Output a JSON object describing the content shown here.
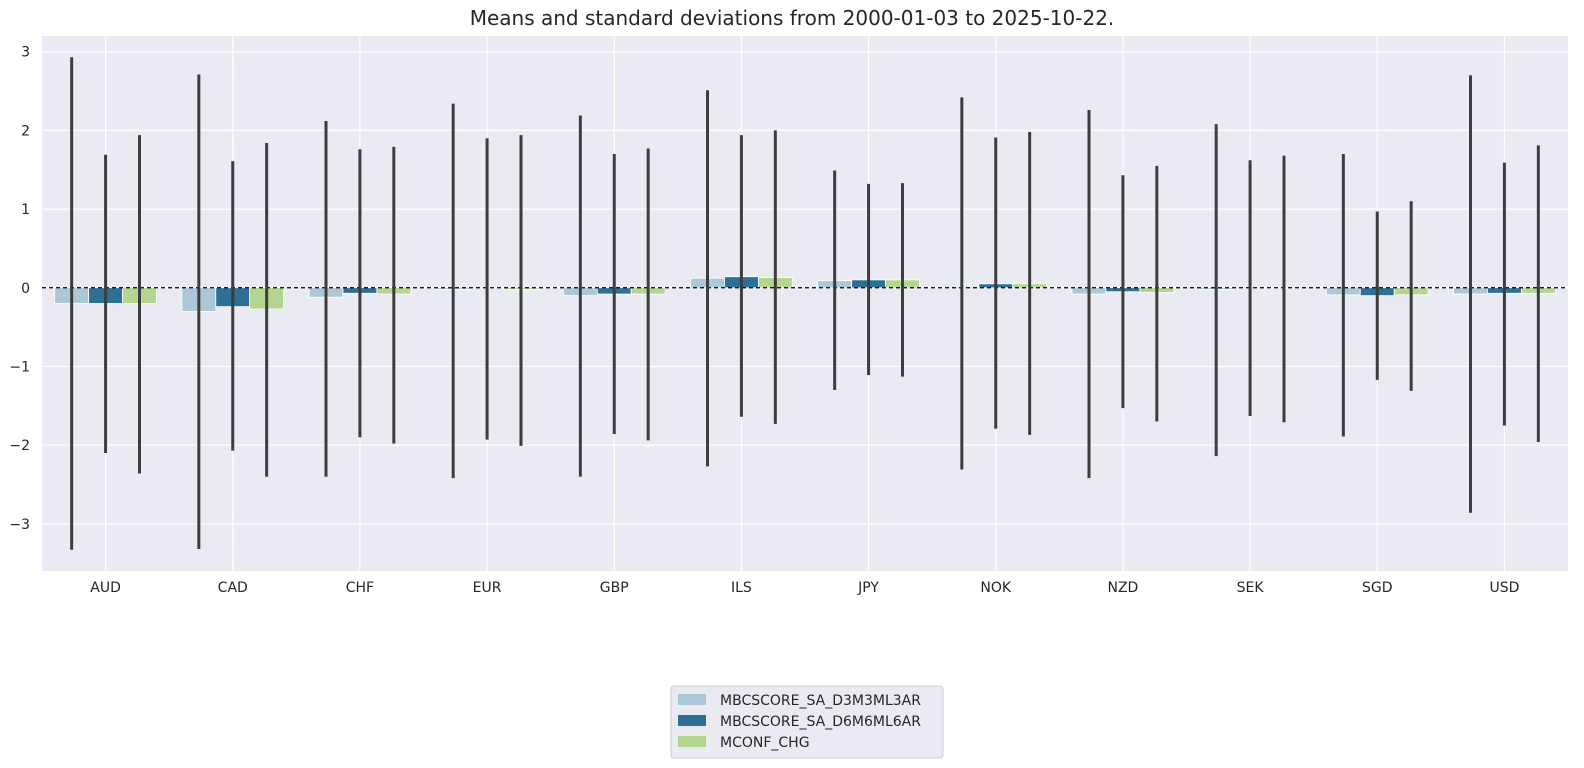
{
  "chart_data": {
    "type": "bar",
    "title": "Means and standard deviations from 2000-01-03 to 2025-10-22.",
    "xlabel": "",
    "ylabel": "",
    "ylim": [
      -3.6,
      3.2
    ],
    "yticks": [
      3,
      2,
      1,
      0,
      -1,
      -2,
      -3
    ],
    "ytick_labels": [
      "3",
      "2",
      "1",
      "0",
      "−1",
      "−2",
      "−3"
    ],
    "grid": true,
    "reference_line": {
      "y": 0,
      "style": "dashed",
      "color": "#000000"
    },
    "legend_position": "bottom-center",
    "categories": [
      "AUD",
      "CAD",
      "CHF",
      "EUR",
      "GBP",
      "ILS",
      "JPY",
      "NOK",
      "NZD",
      "SEK",
      "SGD",
      "USD"
    ],
    "series": [
      {
        "name": "MBCSCORE_SA_D3M3ML3AR",
        "color": "#acc8d8",
        "values": [
          -0.2,
          -0.3,
          -0.12,
          -0.02,
          -0.1,
          0.12,
          0.09,
          0.02,
          -0.08,
          -0.02,
          -0.09,
          -0.08
        ],
        "err_low": [
          -3.33,
          -3.32,
          -2.4,
          -2.42,
          -2.4,
          -2.27,
          -1.3,
          -2.31,
          -2.42,
          -2.14,
          -1.89,
          -2.86
        ],
        "err_high": [
          2.93,
          2.71,
          2.12,
          2.34,
          2.19,
          2.51,
          1.49,
          2.42,
          2.26,
          2.08,
          1.7,
          2.7
        ]
      },
      {
        "name": "MBCSCORE_SA_D6M6ML6AR",
        "color": "#2e6f95",
        "values": [
          -0.2,
          -0.24,
          -0.07,
          0.0,
          -0.08,
          0.14,
          0.1,
          0.05,
          -0.05,
          0.0,
          -0.1,
          -0.07
        ],
        "err_low": [
          -2.1,
          -2.07,
          -1.9,
          -1.93,
          -1.86,
          -1.64,
          -1.11,
          -1.79,
          -1.53,
          -1.63,
          -1.17,
          -1.75
        ],
        "err_high": [
          1.69,
          1.61,
          1.76,
          1.9,
          1.7,
          1.94,
          1.32,
          1.91,
          1.43,
          1.62,
          0.97,
          1.59
        ]
      },
      {
        "name": "MCONF_CHG",
        "color": "#b3d58f",
        "values": [
          -0.2,
          -0.27,
          -0.08,
          -0.02,
          -0.08,
          0.13,
          0.1,
          0.05,
          -0.06,
          -0.01,
          -0.09,
          -0.07
        ],
        "err_low": [
          -2.36,
          -2.4,
          -1.98,
          -2.01,
          -1.94,
          -1.73,
          -1.13,
          -1.87,
          -1.7,
          -1.71,
          -1.31,
          -1.96
        ],
        "err_high": [
          1.94,
          1.84,
          1.79,
          1.94,
          1.77,
          2.0,
          1.33,
          1.98,
          1.55,
          1.68,
          1.1,
          1.81
        ]
      }
    ]
  }
}
